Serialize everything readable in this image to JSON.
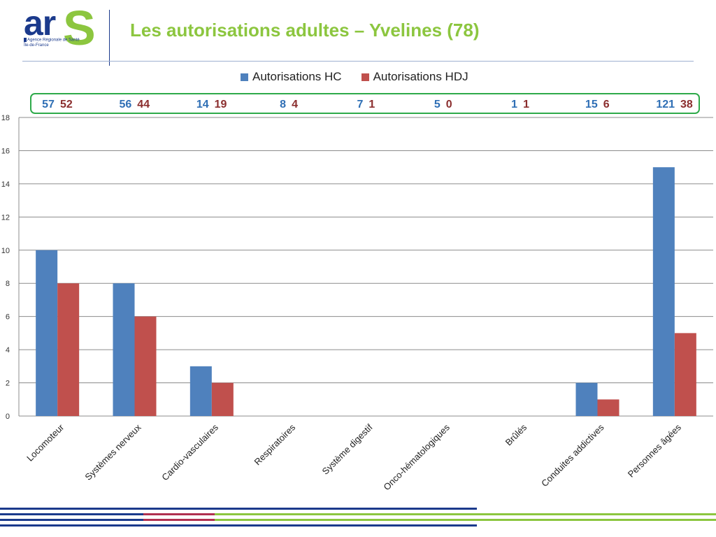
{
  "header": {
    "logo": {
      "mark": "ar",
      "mark_s": "S",
      "line1": "Agence Régionale de Santé",
      "line2": "Île-de-France"
    },
    "title": "Les autorisations adultes – Yvelines (78)"
  },
  "legend": [
    {
      "label": "Autorisations HC",
      "color": "#4f81bd"
    },
    {
      "label": "Autorisations HDJ",
      "color": "#c0504d"
    }
  ],
  "summary_counts": [
    {
      "hc": "57",
      "hdj": "52"
    },
    {
      "hc": "56",
      "hdj": "44"
    },
    {
      "hc": "14",
      "hdj": "19"
    },
    {
      "hc": "8",
      "hdj": "4"
    },
    {
      "hc": "7",
      "hdj": "1"
    },
    {
      "hc": "5",
      "hdj": "0"
    },
    {
      "hc": "1",
      "hdj": "1"
    },
    {
      "hc": "15",
      "hdj": "6"
    },
    {
      "hc": "121",
      "hdj": "38"
    }
  ],
  "colors": {
    "hc_text": "#2f6fb5",
    "hdj_text": "#8b2e2e",
    "box_border": "#2eaa4a",
    "title": "#8cc63f",
    "navy": "#1b3a8c",
    "green": "#8cc63f",
    "maroon": "#b03050"
  },
  "chart_data": {
    "type": "bar",
    "categories": [
      "Locomoteur",
      "Systèmes nerveux",
      "Cardio-vasculaires",
      "Respiratoires",
      "Système digestif",
      "Onco-hématologiques",
      "Brûlés",
      "Conduites addictives",
      "Personnes âgées"
    ],
    "series": [
      {
        "name": "Autorisations HC",
        "color": "#4f81bd",
        "values": [
          10,
          8,
          3,
          0,
          0,
          0,
          0,
          2,
          15
        ]
      },
      {
        "name": "Autorisations HDJ",
        "color": "#c0504d",
        "values": [
          8,
          6,
          2,
          0,
          0,
          0,
          0,
          1,
          5
        ]
      }
    ],
    "ylim": [
      0,
      18
    ],
    "yticks": [
      0,
      2,
      4,
      6,
      8,
      10,
      12,
      14,
      16,
      18
    ],
    "grid": true,
    "legend_position": "top"
  }
}
